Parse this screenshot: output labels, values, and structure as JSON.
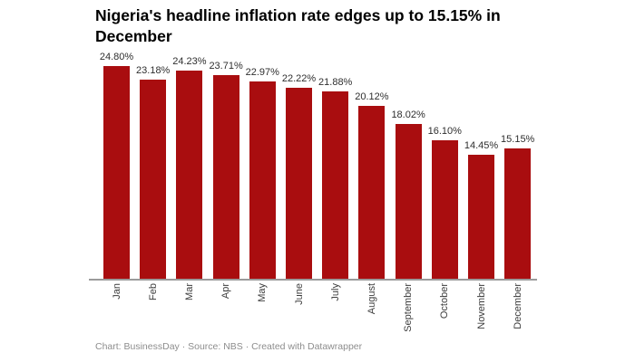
{
  "title": "Nigeria's headline inflation rate edges up to 15.15% in December",
  "footer": "Chart: BusinessDay · Source: NBS · Created with Datawrapper",
  "colors": {
    "bar": "#a90d0f",
    "axis": "#9b9b9b",
    "title": "#000000",
    "value_label": "#2e2e2e",
    "month_label": "#3d3d3d",
    "footer": "#8d8d8d",
    "background": "#ffffff"
  },
  "chart_data": {
    "type": "bar",
    "categories": [
      "Jan",
      "Feb",
      "Mar",
      "Apr",
      "May",
      "June",
      "July",
      "August",
      "September",
      "October",
      "November",
      "December"
    ],
    "values": [
      24.8,
      23.18,
      24.23,
      23.71,
      22.97,
      22.22,
      21.88,
      20.12,
      18.02,
      16.1,
      14.45,
      15.15
    ],
    "value_label_format": "percent-2dp",
    "title": "Nigeria's headline inflation rate edges up to 15.15% in December",
    "xlabel": "",
    "ylabel": "",
    "ylim": [
      0,
      26
    ],
    "grid": false,
    "legend": false,
    "bar_color": "#a90d0f",
    "footer": "Chart: BusinessDay · Source: NBS · Created with Datawrapper"
  }
}
